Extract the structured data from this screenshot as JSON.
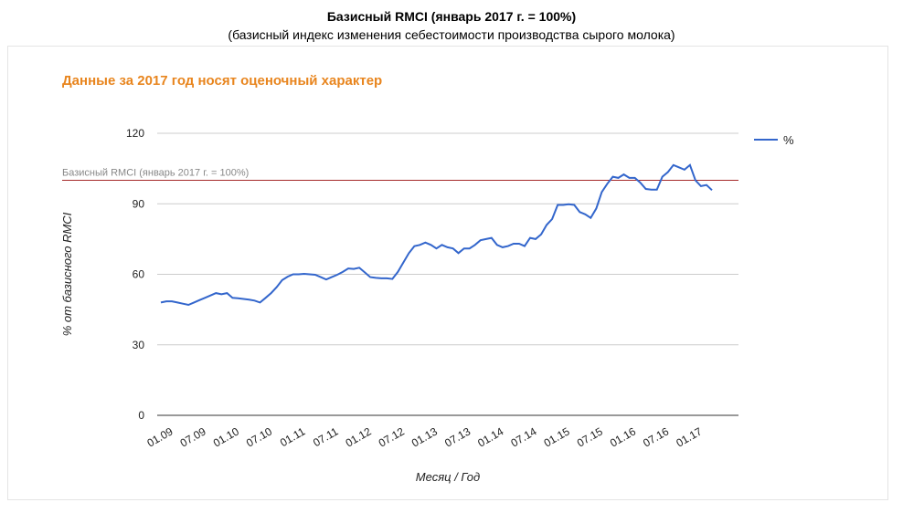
{
  "title": "Базисный RMCI (январь 2017 г. = 100%)",
  "subtitle": "(базисный индекс изменения себестоимости производства сырого молока)",
  "note": "Данные за 2017 год носят оценочный характер",
  "colors": {
    "line": "#3366cc",
    "reference": "#a52a2a",
    "note": "#e8851e",
    "grid": "#cccccc"
  },
  "chart_data": {
    "type": "line",
    "xlabel": "Месяц / Год",
    "ylabel": "% от базисного RMCI",
    "ylim": [
      0,
      120
    ],
    "yticks": [
      0,
      30,
      60,
      90,
      120
    ],
    "xticks": [
      "01.09",
      "07.09",
      "01.10",
      "07.10",
      "01.11",
      "07.11",
      "01.12",
      "07.12",
      "01.13",
      "07.13",
      "01.14",
      "07.14",
      "01.15",
      "07.15",
      "01.16",
      "07.16",
      "01.17"
    ],
    "legend": {
      "position": "top-right",
      "label": "%"
    },
    "reference_line": {
      "value": 100,
      "label": "Базисный RMCI (январь 2017 г. = 100%)"
    },
    "series": [
      {
        "name": "%",
        "x_start": "01.09",
        "values": [
          48,
          48.5,
          48.5,
          48,
          47.5,
          47,
          48,
          49,
          50,
          51,
          52,
          51.5,
          52,
          50,
          49.8,
          49.5,
          49.2,
          48.8,
          48,
          50,
          52,
          54.5,
          57.5,
          59,
          60,
          60,
          60.2,
          60,
          59.8,
          58.8,
          57.8,
          58.8,
          59.8,
          61,
          62.5,
          62.3,
          62.8,
          60.8,
          58.8,
          58.5,
          58.3,
          58.3,
          58,
          61,
          65,
          69,
          72,
          72.5,
          73.5,
          72.5,
          71,
          72.5,
          71.5,
          71,
          69,
          71,
          71,
          72.5,
          74.5,
          75,
          75.5,
          72.5,
          71.5,
          72,
          73,
          73,
          72,
          75.5,
          75,
          77,
          81,
          83.5,
          89.5,
          89.5,
          89.8,
          89.5,
          86.5,
          85.5,
          84,
          88,
          95,
          98.5,
          101.5,
          101,
          102.5,
          101,
          101,
          99,
          96.3,
          96,
          96,
          101.5,
          103.5,
          106.5,
          105.5,
          104.5,
          106.5,
          100,
          97.5,
          98,
          95.8
        ]
      }
    ]
  }
}
